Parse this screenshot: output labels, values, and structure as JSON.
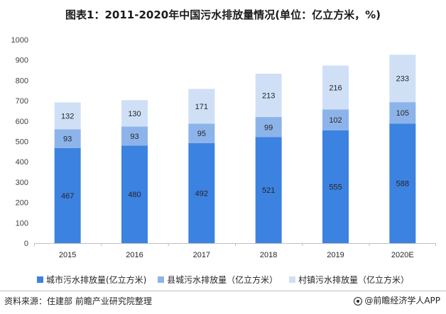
{
  "chart_data": {
    "type": "bar",
    "stacked": true,
    "title": "图表1：2011-2020年中国污水排放量情况(单位：亿立方米，%)",
    "categories": [
      "2015",
      "2016",
      "2017",
      "2018",
      "2019",
      "2020E"
    ],
    "series": [
      {
        "name": "城市污水排放量(亿立方米)",
        "color": "#3c82e0",
        "values": [
          467,
          480,
          492,
          521,
          555,
          588
        ]
      },
      {
        "name": "县城污水排放量（亿立方米）",
        "color": "#8db4ea",
        "values": [
          93,
          93,
          95,
          99,
          102,
          105
        ]
      },
      {
        "name": "村镇污水排放量（亿立方米）",
        "color": "#cfe0f6",
        "values": [
          132,
          130,
          171,
          213,
          216,
          233
        ]
      }
    ],
    "ylim": [
      0,
      1000
    ],
    "yticks": [
      0,
      100,
      200,
      300,
      400,
      500,
      600,
      700,
      800,
      900,
      1000
    ],
    "grid": false,
    "legend": "bottom"
  },
  "footer": {
    "source": "资料来源：住建部 前瞻产业研究院整理",
    "brand": "@前瞻经济学人APP"
  }
}
